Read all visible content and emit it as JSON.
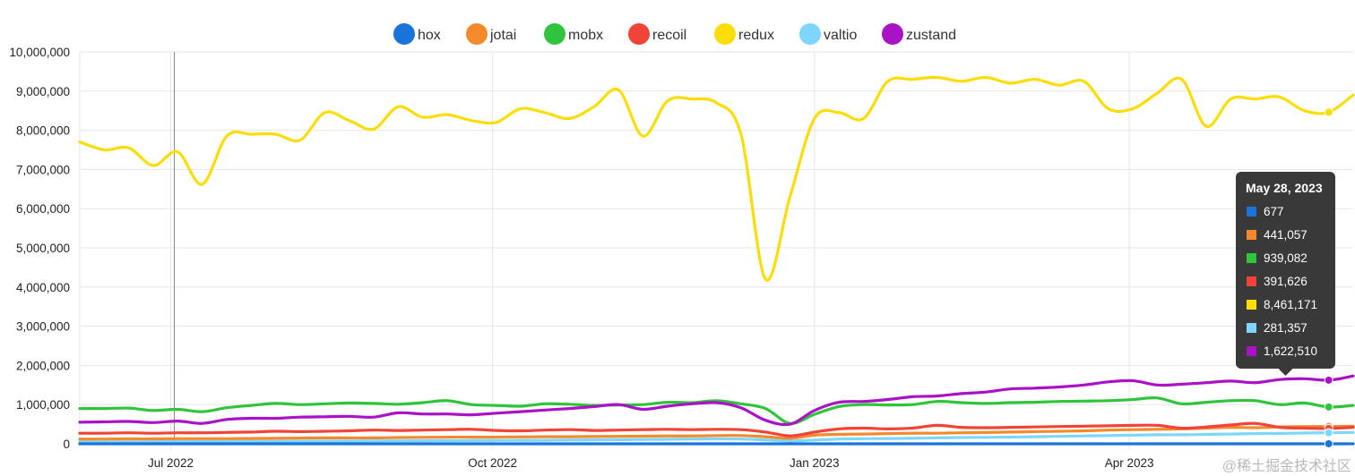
{
  "chart_data": {
    "type": "line",
    "title": "",
    "xlabel": "",
    "ylabel": "",
    "ylim": [
      0,
      10000000
    ],
    "yticks": [
      "0",
      "1,000,000",
      "2,000,000",
      "3,000,000",
      "4,000,000",
      "5,000,000",
      "6,000,000",
      "7,000,000",
      "8,000,000",
      "9,000,000",
      "10,000,000"
    ],
    "xticks": [
      "Jul 2022",
      "Oct 2022",
      "Jan 2023",
      "Apr 2023"
    ],
    "legend_position": "top",
    "grid": true,
    "x_dates": [
      "2022-06-05",
      "2022-06-12",
      "2022-06-19",
      "2022-06-26",
      "2022-07-03",
      "2022-07-10",
      "2022-07-17",
      "2022-07-24",
      "2022-07-31",
      "2022-08-07",
      "2022-08-14",
      "2022-08-21",
      "2022-08-28",
      "2022-09-04",
      "2022-09-11",
      "2022-09-18",
      "2022-09-25",
      "2022-10-02",
      "2022-10-09",
      "2022-10-16",
      "2022-10-23",
      "2022-10-30",
      "2022-11-06",
      "2022-11-13",
      "2022-11-20",
      "2022-11-27",
      "2022-12-04",
      "2022-12-11",
      "2022-12-18",
      "2022-12-25",
      "2023-01-01",
      "2023-01-08",
      "2023-01-15",
      "2023-01-22",
      "2023-01-29",
      "2023-02-05",
      "2023-02-12",
      "2023-02-19",
      "2023-02-26",
      "2023-03-05",
      "2023-03-12",
      "2023-03-19",
      "2023-03-26",
      "2023-04-02",
      "2023-04-09",
      "2023-04-16",
      "2023-04-23",
      "2023-04-30",
      "2023-05-07",
      "2023-05-14",
      "2023-05-21",
      "2023-05-28",
      "2023-06-04"
    ],
    "series": [
      {
        "name": "hox",
        "color": "#1a73d9",
        "values": [
          600,
          600,
          610,
          620,
          620,
          630,
          630,
          640,
          640,
          650,
          650,
          650,
          660,
          660,
          660,
          670,
          670,
          670,
          670,
          670,
          670,
          670,
          670,
          670,
          670,
          670,
          670,
          670,
          660,
          600,
          640,
          650,
          660,
          660,
          660,
          670,
          670,
          670,
          670,
          670,
          670,
          670,
          670,
          670,
          670,
          670,
          670,
          670,
          670,
          670,
          670,
          677,
          680
        ]
      },
      {
        "name": "jotai",
        "color": "#f58a2c",
        "values": [
          120000,
          120000,
          125000,
          125000,
          130000,
          130000,
          130000,
          135000,
          140000,
          145000,
          150000,
          150000,
          150000,
          160000,
          165000,
          170000,
          170000,
          170000,
          175000,
          180000,
          180000,
          185000,
          190000,
          195000,
          200000,
          200000,
          210000,
          210000,
          180000,
          140000,
          220000,
          240000,
          250000,
          260000,
          270000,
          270000,
          280000,
          290000,
          300000,
          310000,
          320000,
          330000,
          350000,
          360000,
          370000,
          380000,
          400000,
          420000,
          410000,
          430000,
          440000,
          441057,
          450000
        ]
      },
      {
        "name": "mobx",
        "color": "#2fc43c",
        "values": [
          900000,
          900000,
          910000,
          850000,
          880000,
          820000,
          920000,
          980000,
          1030000,
          1000000,
          1020000,
          1040000,
          1030000,
          1010000,
          1050000,
          1100000,
          1000000,
          980000,
          960000,
          1020000,
          1010000,
          980000,
          990000,
          1000000,
          1060000,
          1050000,
          1100000,
          1020000,
          900000,
          520000,
          750000,
          950000,
          1000000,
          990000,
          1000000,
          1080000,
          1050000,
          1030000,
          1050000,
          1060000,
          1080000,
          1090000,
          1100000,
          1130000,
          1170000,
          1020000,
          1060000,
          1100000,
          1100000,
          1000000,
          1040000,
          939082,
          980000
        ]
      },
      {
        "name": "recoil",
        "color": "#f04438",
        "values": [
          270000,
          270000,
          280000,
          270000,
          280000,
          280000,
          290000,
          300000,
          320000,
          310000,
          320000,
          330000,
          350000,
          340000,
          350000,
          360000,
          370000,
          340000,
          330000,
          350000,
          360000,
          340000,
          350000,
          360000,
          370000,
          360000,
          370000,
          360000,
          300000,
          200000,
          300000,
          380000,
          400000,
          380000,
          400000,
          470000,
          420000,
          410000,
          420000,
          430000,
          440000,
          450000,
          460000,
          470000,
          470000,
          400000,
          430000,
          480000,
          520000,
          420000,
          400000,
          391626,
          420000
        ]
      },
      {
        "name": "redux",
        "color": "#fcdd08",
        "values": [
          7700000,
          7500000,
          7550000,
          7100000,
          7450000,
          6620000,
          7850000,
          7900000,
          7900000,
          7750000,
          8450000,
          8250000,
          8030000,
          8600000,
          8330000,
          8400000,
          8250000,
          8200000,
          8550000,
          8450000,
          8300000,
          8600000,
          9030000,
          7850000,
          8750000,
          8800000,
          8700000,
          7900000,
          4200000,
          6300000,
          8300000,
          8450000,
          8300000,
          9250000,
          9300000,
          9350000,
          9250000,
          9350000,
          9200000,
          9300000,
          9150000,
          9250000,
          8550000,
          8550000,
          8950000,
          9300000,
          8100000,
          8800000,
          8800000,
          8850000,
          8500000,
          8461171,
          8900000
        ]
      },
      {
        "name": "valtio",
        "color": "#7dd6fb",
        "values": [
          50000,
          50000,
          50000,
          52000,
          55000,
          55000,
          58000,
          60000,
          62000,
          65000,
          68000,
          70000,
          72000,
          75000,
          78000,
          80000,
          82000,
          85000,
          88000,
          90000,
          95000,
          100000,
          105000,
          110000,
          115000,
          120000,
          125000,
          120000,
          100000,
          70000,
          95000,
          120000,
          130000,
          135000,
          140000,
          150000,
          160000,
          165000,
          170000,
          180000,
          190000,
          200000,
          210000,
          220000,
          230000,
          230000,
          240000,
          250000,
          260000,
          265000,
          275000,
          281357,
          290000
        ]
      },
      {
        "name": "zustand",
        "color": "#aa12c5",
        "values": [
          550000,
          560000,
          570000,
          540000,
          580000,
          520000,
          620000,
          650000,
          650000,
          680000,
          690000,
          700000,
          680000,
          790000,
          760000,
          760000,
          740000,
          780000,
          820000,
          860000,
          900000,
          950000,
          1000000,
          880000,
          960000,
          1020000,
          1050000,
          920000,
          600000,
          500000,
          850000,
          1060000,
          1080000,
          1130000,
          1200000,
          1220000,
          1280000,
          1320000,
          1400000,
          1420000,
          1450000,
          1500000,
          1580000,
          1610000,
          1500000,
          1520000,
          1560000,
          1600000,
          1560000,
          1640000,
          1660000,
          1622510,
          1730000
        ]
      }
    ],
    "tooltip": {
      "date": "May 28, 2023",
      "entries": [
        {
          "color": "#1a73d9",
          "value": "677"
        },
        {
          "color": "#f58a2c",
          "value": "441,057"
        },
        {
          "color": "#2fc43c",
          "value": "939,082"
        },
        {
          "color": "#f04438",
          "value": "391,626"
        },
        {
          "color": "#fcdd08",
          "value": "8,461,171"
        },
        {
          "color": "#7dd6fb",
          "value": "281,357"
        },
        {
          "color": "#aa12c5",
          "value": "1,622,510"
        }
      ]
    }
  },
  "watermark": "@稀土掘金技术社区"
}
